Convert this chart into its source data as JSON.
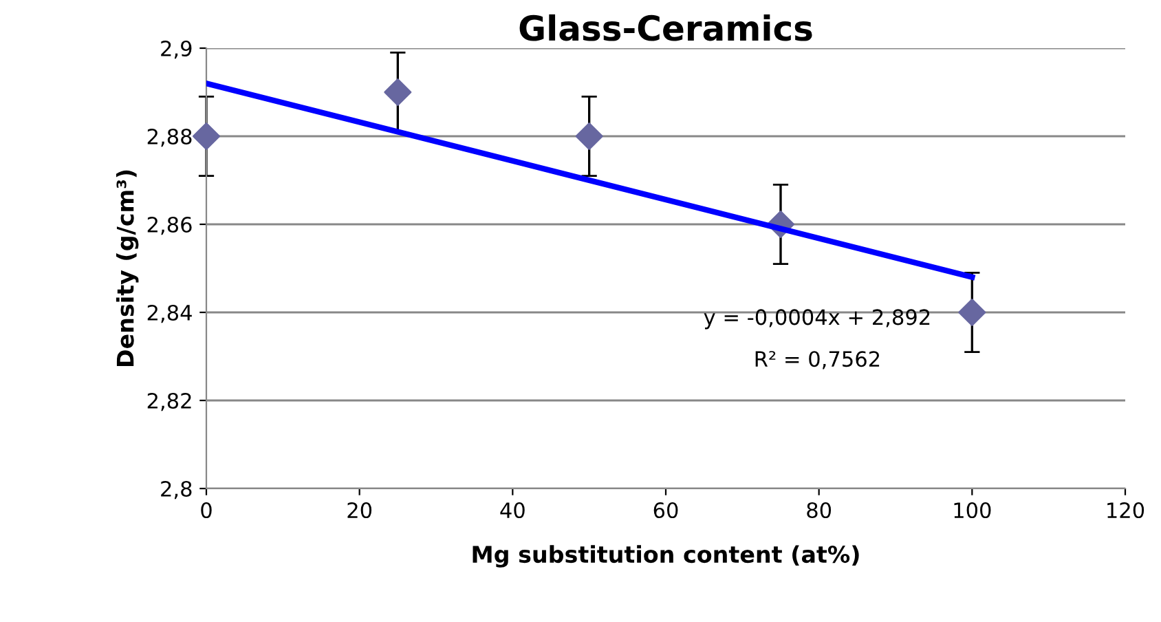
{
  "chart_data": {
    "type": "scatter",
    "title": "Glass-Ceramics",
    "xlabel": "Mg substitution content (at%)",
    "ylabel": "Density (g/cm³)",
    "x": [
      0,
      25,
      50,
      75,
      100
    ],
    "series": [
      {
        "color": "#6767a0",
        "values": [
          2.88,
          2.89,
          2.88,
          2.86,
          2.84
        ],
        "errors": [
          0.009,
          0.009,
          0.009,
          0.009,
          0.009
        ],
        "marker": "diamond"
      },
      {
        "type": "line",
        "color": "#0000ff",
        "x": [
          0,
          100
        ],
        "values": [
          2.892,
          2.848
        ],
        "line_style": "solid"
      }
    ],
    "annotations": [
      "y = -0,0004x + 2,892",
      "R² = 0,7562"
    ],
    "xlim": [
      0,
      120
    ],
    "xticks": [
      0,
      20,
      40,
      60,
      80,
      100,
      120
    ],
    "ylim": [
      2.8,
      2.9
    ],
    "yticks": [
      {
        "value": 2.8,
        "label": "2,8"
      },
      {
        "value": 2.82,
        "label": "2,82"
      },
      {
        "value": 2.84,
        "label": "2,84"
      },
      {
        "value": 2.86,
        "label": "2,86"
      },
      {
        "value": 2.88,
        "label": "2,88"
      },
      {
        "value": 2.9,
        "label": "2,9"
      }
    ],
    "grid": "y"
  }
}
